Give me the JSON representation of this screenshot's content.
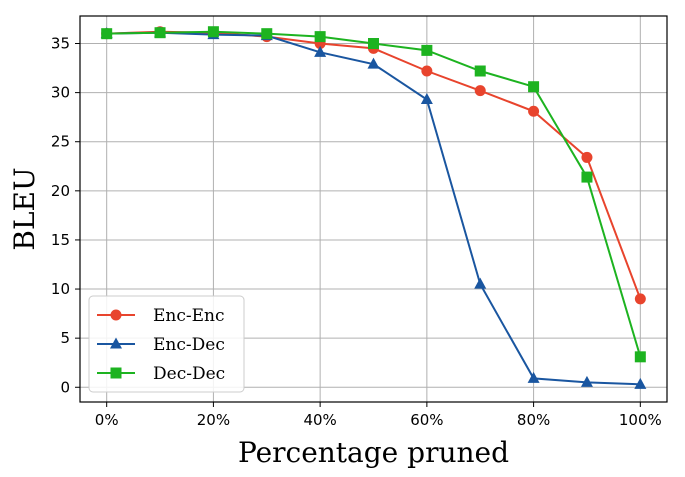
{
  "chart_data": {
    "type": "line",
    "title": "",
    "xlabel": "Percentage pruned",
    "ylabel": "BLEU",
    "x": [
      0,
      10,
      20,
      30,
      40,
      50,
      60,
      70,
      80,
      90,
      100
    ],
    "x_tick_values": [
      0,
      20,
      40,
      60,
      80,
      100
    ],
    "x_tick_labels": [
      "0%",
      "20%",
      "40%",
      "60%",
      "80%",
      "100%"
    ],
    "y_tick_values": [
      0,
      5,
      10,
      15,
      20,
      25,
      30,
      35
    ],
    "y_tick_labels": [
      "0",
      "5",
      "10",
      "15",
      "20",
      "25",
      "30",
      "35"
    ],
    "xlim": [
      -5,
      105
    ],
    "ylim": [
      -1.5,
      37.8
    ],
    "grid": true,
    "legend_position": "lower-left",
    "series": [
      {
        "name": "Enc-Enc",
        "color": "#e8442d",
        "marker": "circle",
        "values": [
          36.0,
          36.2,
          36.1,
          35.7,
          35.0,
          34.5,
          32.2,
          30.2,
          28.1,
          23.4,
          9.0
        ]
      },
      {
        "name": "Enc-Dec",
        "color": "#1a56a0",
        "marker": "triangle",
        "values": [
          36.0,
          36.1,
          35.9,
          35.8,
          34.1,
          32.9,
          29.3,
          10.5,
          0.9,
          0.5,
          0.3
        ]
      },
      {
        "name": "Dec-Dec",
        "color": "#1db320",
        "marker": "square",
        "values": [
          36.0,
          36.1,
          36.2,
          36.0,
          35.7,
          35.0,
          34.3,
          32.2,
          30.6,
          21.4,
          3.1
        ]
      }
    ]
  }
}
